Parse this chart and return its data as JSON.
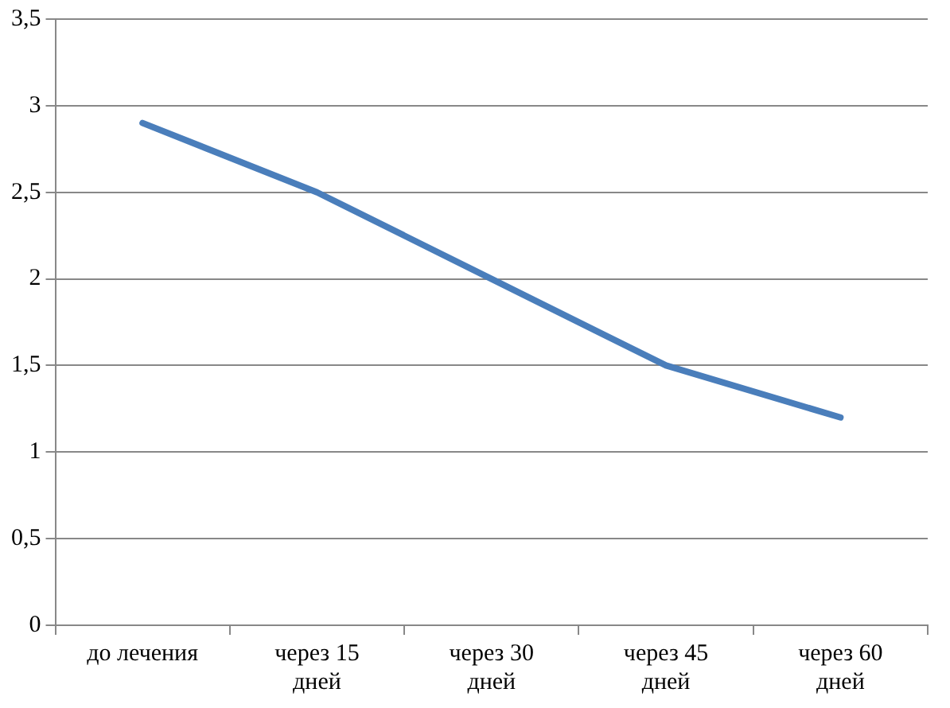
{
  "chart_data": {
    "type": "line",
    "categories": [
      "до лечения",
      "через 15 дней",
      "через 30 дней",
      "через 45 дней",
      "через 60 дней"
    ],
    "series": [
      {
        "color": "#4a7ebb",
        "values": [
          2.9,
          2.5,
          2.0,
          1.5,
          1.2
        ]
      }
    ],
    "ylim": [
      0,
      3.5
    ],
    "yticks": [
      {
        "value": 0,
        "label": "0"
      },
      {
        "value": 0.5,
        "label": "0,5"
      },
      {
        "value": 1,
        "label": "1"
      },
      {
        "value": 1.5,
        "label": "1,5"
      },
      {
        "value": 2,
        "label": "2"
      },
      {
        "value": 2.5,
        "label": "2,5"
      },
      {
        "value": 3,
        "label": "3"
      },
      {
        "value": 3.5,
        "label": "3,5"
      }
    ],
    "grid": "y",
    "legend": false,
    "marker": "none",
    "line_style": "solid"
  }
}
